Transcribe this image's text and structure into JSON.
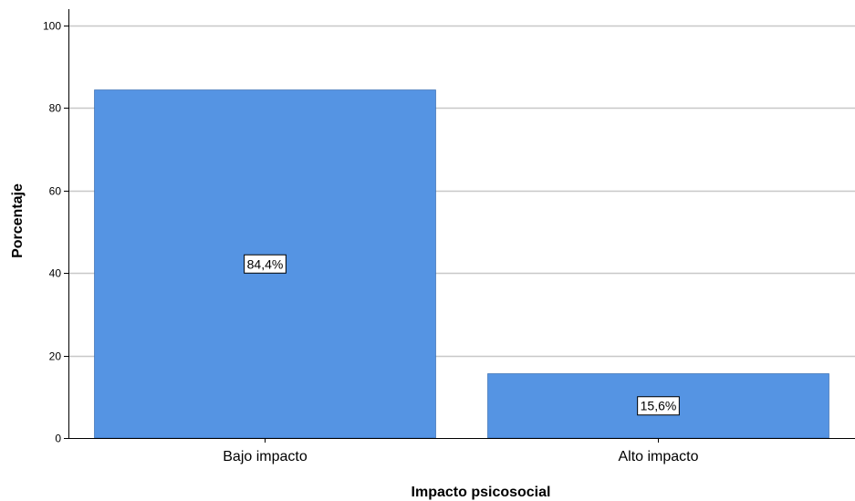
{
  "chart_data": {
    "type": "bar",
    "categories": [
      "Bajo impacto",
      "Alto impacto"
    ],
    "values": [
      84.4,
      15.6
    ],
    "value_labels": [
      "84,4%",
      "15,6%"
    ],
    "xlabel": "Impacto psicosocial",
    "ylabel": "Porcentaje",
    "ylim": [
      0,
      100
    ],
    "yticks": [
      0,
      20,
      40,
      60,
      80,
      100
    ],
    "ytick_labels": [
      "0",
      "20",
      "40",
      "60",
      "80",
      "100"
    ],
    "grid": "horizontal",
    "legend": "none",
    "colors": {
      "bar": "#5594e3",
      "bar_edge": "#2a62a8",
      "grid": "#c8c8c8",
      "axis": "#000000",
      "label_box_fill": "#ffffff",
      "label_box_edge": "#000000"
    }
  }
}
